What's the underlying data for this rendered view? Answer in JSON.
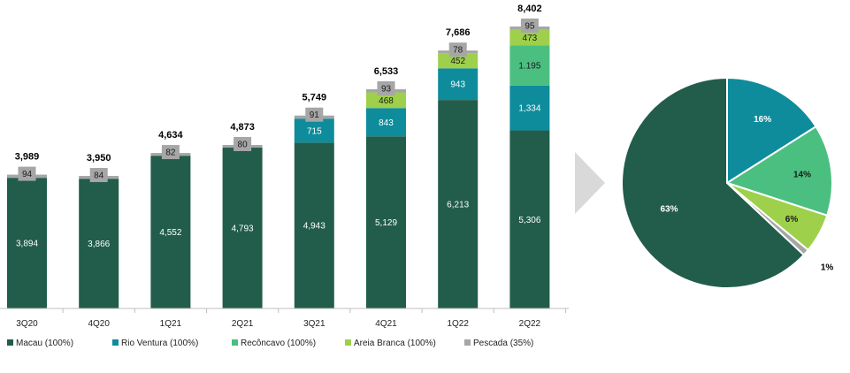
{
  "chart_data": [
    {
      "type": "bar",
      "stacked": true,
      "categories": [
        "3Q20",
        "4Q20",
        "1Q21",
        "2Q21",
        "3Q21",
        "4Q21",
        "1Q22",
        "2Q22"
      ],
      "totals": [
        "3,989",
        "3,950",
        "4,634",
        "4,873",
        "5,749",
        "6,533",
        "7,686",
        "8,402"
      ],
      "series": [
        {
          "name": "Macau (100%)",
          "color": "#215D4A",
          "values": [
            3894,
            3866,
            4552,
            4793,
            4943,
            5129,
            6213,
            5306
          ],
          "labels": [
            "3,894",
            "3,866",
            "4,552",
            "4,793",
            "4,943",
            "5,129",
            "6,213",
            "5,306"
          ]
        },
        {
          "name": "Rio Ventura (100%)",
          "color": "#0E8C9C",
          "values": [
            0,
            0,
            0,
            0,
            715,
            843,
            943,
            1334
          ],
          "labels": [
            "",
            "",
            "",
            "",
            "715",
            "843",
            "943",
            "1,334"
          ]
        },
        {
          "name": "Recôncavo (100%)",
          "color": "#4BBF80",
          "values": [
            0,
            0,
            0,
            0,
            0,
            0,
            0,
            1195
          ],
          "labels": [
            "",
            "",
            "",
            "",
            "",
            "",
            "",
            "1.195"
          ]
        },
        {
          "name": "Areia Branca (100%)",
          "color": "#9ED04B",
          "values": [
            0,
            0,
            0,
            0,
            0,
            468,
            452,
            473
          ],
          "labels": [
            "",
            "",
            "",
            "",
            "",
            "468",
            "452",
            "473"
          ]
        },
        {
          "name": "Pescada (35%)",
          "color": "#A6A6A6",
          "values": [
            94,
            84,
            82,
            80,
            91,
            93,
            78,
            95
          ],
          "labels": [
            "94",
            "84",
            "82",
            "80",
            "91",
            "93",
            "78",
            "95"
          ]
        }
      ],
      "ylim": [
        0,
        8402
      ],
      "legend_position": "bottom",
      "grid": false
    },
    {
      "type": "pie",
      "slices": [
        {
          "name": "Rio Ventura",
          "value": 16,
          "label": "16%",
          "color": "#0E8C9C"
        },
        {
          "name": "Recôncavo",
          "value": 14,
          "label": "14%",
          "color": "#4BBF80"
        },
        {
          "name": "Areia Branca",
          "value": 6,
          "label": "6%",
          "color": "#9ED04B"
        },
        {
          "name": "Pescada",
          "value": 1,
          "label": "1%",
          "color": "#A6A6A6"
        },
        {
          "name": "Macau",
          "value": 63,
          "label": "63%",
          "color": "#215D4A"
        }
      ]
    }
  ],
  "arrow_color": "#D9D9D9"
}
